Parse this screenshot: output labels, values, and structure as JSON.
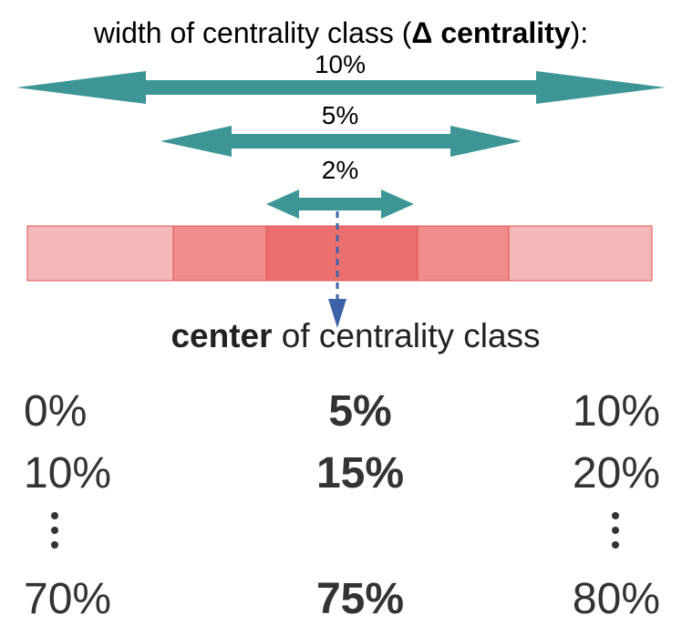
{
  "title": {
    "prefix": "width of centrality class (",
    "bold": "Δ centrality",
    "suffix": "):"
  },
  "widths": [
    {
      "label": "10%",
      "width_percent": 10
    },
    {
      "label": "5%",
      "width_percent": 5
    },
    {
      "label": "2%",
      "width_percent": 2
    }
  ],
  "bar": {
    "segments": [
      {
        "name": "outer",
        "color": "#f4b8b8"
      },
      {
        "name": "middle",
        "color": "#ef8c8c"
      },
      {
        "name": "inner",
        "color": "#ec6f6f"
      }
    ],
    "border_color": "#e05050"
  },
  "arrow_color": "#3d9595",
  "center_arrow_color": "#3e62a8",
  "center_caption": {
    "bold": "center",
    "rest": " of centrality class"
  },
  "rows": [
    {
      "low": "0%",
      "center": "5%",
      "high": "10%"
    },
    {
      "low": "10%",
      "center": "15%",
      "high": "20%"
    },
    {
      "low": "70%",
      "center": "75%",
      "high": "80%"
    }
  ]
}
